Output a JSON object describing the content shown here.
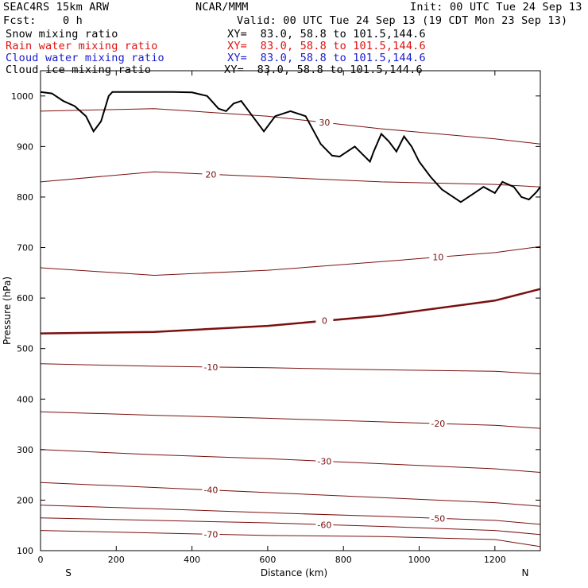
{
  "header": {
    "model": "SEAC4RS 15km ARW",
    "center": "NCAR/MMM",
    "init": "Init: 00 UTC Tue 24 Sep 13",
    "fcst": "Fcst:    0 h",
    "valid": "Valid: 00 UTC Tue 24 Sep 13 (19 CDT Mon 23 Sep 13)"
  },
  "fields": [
    {
      "name": "Snow mixing ratio",
      "xy": "XY=  83.0, 58.8 to 101.5,144.6",
      "color": "#000000"
    },
    {
      "name": "Rain water mixing ratio",
      "xy": "XY=  83.0, 58.8 to 101.5,144.6",
      "color": "#e01010"
    },
    {
      "name": "Cloud water mixing ratio",
      "xy": "XY=  83.0, 58.8 to 101.5,144.6",
      "color": "#1a1acc"
    },
    {
      "name": "Cloud ice mixing ratio",
      "xy": "XY=  83.0, 58.8 to 101.5,144.6",
      "color": "#000000"
    }
  ],
  "chart_data": {
    "type": "line",
    "xlabel": "Distance (km)",
    "ylabel": "Pressure (hPa)",
    "xlim": [
      0,
      1320
    ],
    "ylim": [
      1050,
      100
    ],
    "x_ticks": [
      0,
      200,
      400,
      600,
      800,
      1000,
      1200
    ],
    "y_ticks": [
      100,
      200,
      300,
      400,
      500,
      600,
      700,
      800,
      900,
      1000
    ],
    "left_end_label": "S",
    "right_end_label": "N",
    "contour_color": "#7a1010",
    "terrain_color": "#000000",
    "terrain": {
      "x": [
        0,
        30,
        60,
        90,
        120,
        140,
        160,
        180,
        190,
        250,
        350,
        400,
        440,
        470,
        490,
        510,
        530,
        560,
        590,
        620,
        660,
        700,
        740,
        770,
        790,
        810,
        830,
        850,
        870,
        880,
        900,
        920,
        940,
        960,
        980,
        1000,
        1030,
        1060,
        1090,
        1110,
        1140,
        1170,
        1200,
        1220,
        1250,
        1270,
        1290,
        1310,
        1320
      ],
      "p": [
        1008,
        1005,
        990,
        980,
        960,
        930,
        950,
        1000,
        1008,
        1008,
        1008,
        1007,
        1000,
        975,
        970,
        985,
        990,
        960,
        930,
        960,
        970,
        960,
        905,
        882,
        880,
        890,
        900,
        885,
        870,
        890,
        925,
        910,
        890,
        920,
        900,
        870,
        840,
        815,
        800,
        790,
        805,
        820,
        808,
        830,
        820,
        800,
        795,
        810,
        820
      ]
    },
    "contours": [
      {
        "label": "-70",
        "x": [
          0,
          300,
          600,
          900,
          1200,
          1320
        ],
        "p": [
          140,
          135,
          130,
          128,
          122,
          108
        ]
      },
      {
        "label": "-60",
        "x": [
          0,
          300,
          600,
          900,
          1200,
          1320
        ],
        "p": [
          165,
          160,
          155,
          148,
          140,
          132
        ]
      },
      {
        "label": "-50",
        "x": [
          0,
          300,
          600,
          900,
          1200,
          1320
        ],
        "p": [
          190,
          183,
          175,
          168,
          160,
          152
        ]
      },
      {
        "label": "-40",
        "x": [
          0,
          300,
          600,
          900,
          1200,
          1320
        ],
        "p": [
          235,
          225,
          215,
          205,
          195,
          188
        ]
      },
      {
        "label": "-30",
        "x": [
          0,
          300,
          600,
          900,
          1200,
          1320
        ],
        "p": [
          300,
          290,
          282,
          272,
          262,
          255
        ]
      },
      {
        "label": "-20",
        "x": [
          0,
          300,
          600,
          900,
          1200,
          1320
        ],
        "p": [
          375,
          368,
          362,
          355,
          348,
          342
        ]
      },
      {
        "label": "-10",
        "x": [
          0,
          300,
          600,
          900,
          1200,
          1320
        ],
        "p": [
          470,
          465,
          462,
          458,
          455,
          450
        ]
      },
      {
        "label": "0",
        "x": [
          0,
          300,
          600,
          900,
          1200,
          1320
        ],
        "p": [
          530,
          533,
          545,
          565,
          595,
          618
        ],
        "bold": true
      },
      {
        "label": "10",
        "x": [
          0,
          300,
          600,
          900,
          1200,
          1320
        ],
        "p": [
          660,
          645,
          655,
          672,
          690,
          702
        ]
      },
      {
        "label": "20",
        "x": [
          0,
          300,
          600,
          900,
          1200,
          1320
        ],
        "p": [
          830,
          850,
          840,
          830,
          825,
          820
        ]
      },
      {
        "label": "30",
        "x": [
          0,
          300,
          600,
          900,
          1200,
          1320
        ],
        "p": [
          970,
          975,
          960,
          935,
          915,
          905
        ]
      }
    ]
  }
}
